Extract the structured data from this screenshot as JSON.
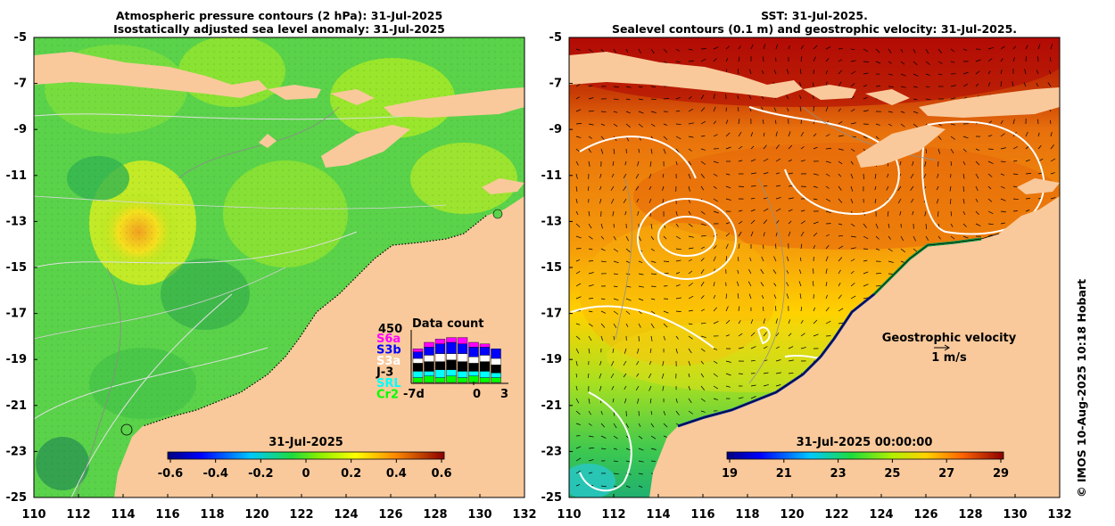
{
  "left_panel": {
    "title_line1": "Atmospheric pressure contours (2 hPa): 31-Jul-2025",
    "title_line2": "Isostatically adjusted sea level anomaly: 31-Jul-2025",
    "colorbar": {
      "date": "31-Jul-2025",
      "ticks": [
        "-0.6",
        "-0.4",
        "-0.2",
        "0",
        "0.2",
        "0.4",
        "0.6"
      ]
    },
    "data_count": {
      "title": "Data count",
      "max_label": "450",
      "satellites": [
        {
          "name": "S6a",
          "color": "#ff00ff"
        },
        {
          "name": "S3b",
          "color": "#0000ff"
        },
        {
          "name": "S3a",
          "color": "#ffffff"
        },
        {
          "name": "J-3",
          "color": "#000000"
        },
        {
          "name": "SRL",
          "color": "#00ffff"
        },
        {
          "name": "Cr2",
          "color": "#00ff00"
        }
      ],
      "x_labels": [
        "-7d",
        "0",
        "3"
      ]
    }
  },
  "right_panel": {
    "title_line1": "SST: 31-Jul-2025.",
    "title_line2": "Sealevel contours (0.1 m) and geostrophic velocity: 31-Jul-2025.",
    "colorbar": {
      "date": "31-Jul-2025 00:00:00",
      "ticks": [
        "19",
        "21",
        "23",
        "25",
        "27",
        "29"
      ]
    },
    "velocity_legend_title": "Geostrophic velocity",
    "velocity_legend_value": "1 m/s"
  },
  "axes": {
    "lat_ticks": [
      "-5",
      "-7",
      "-9",
      "-11",
      "-13",
      "-15",
      "-17",
      "-19",
      "-21",
      "-23",
      "-25"
    ],
    "lon_ticks": [
      "110",
      "112",
      "114",
      "116",
      "118",
      "120",
      "122",
      "124",
      "126",
      "128",
      "130",
      "132"
    ]
  },
  "credit": "© IMOS 10-Aug-2025 10:18 Hobart",
  "colors": {
    "land": "#f9c99b",
    "ocean_green": "#4ed043",
    "sst_warm": "#e85e0a",
    "sst_hot": "#b80c05"
  }
}
